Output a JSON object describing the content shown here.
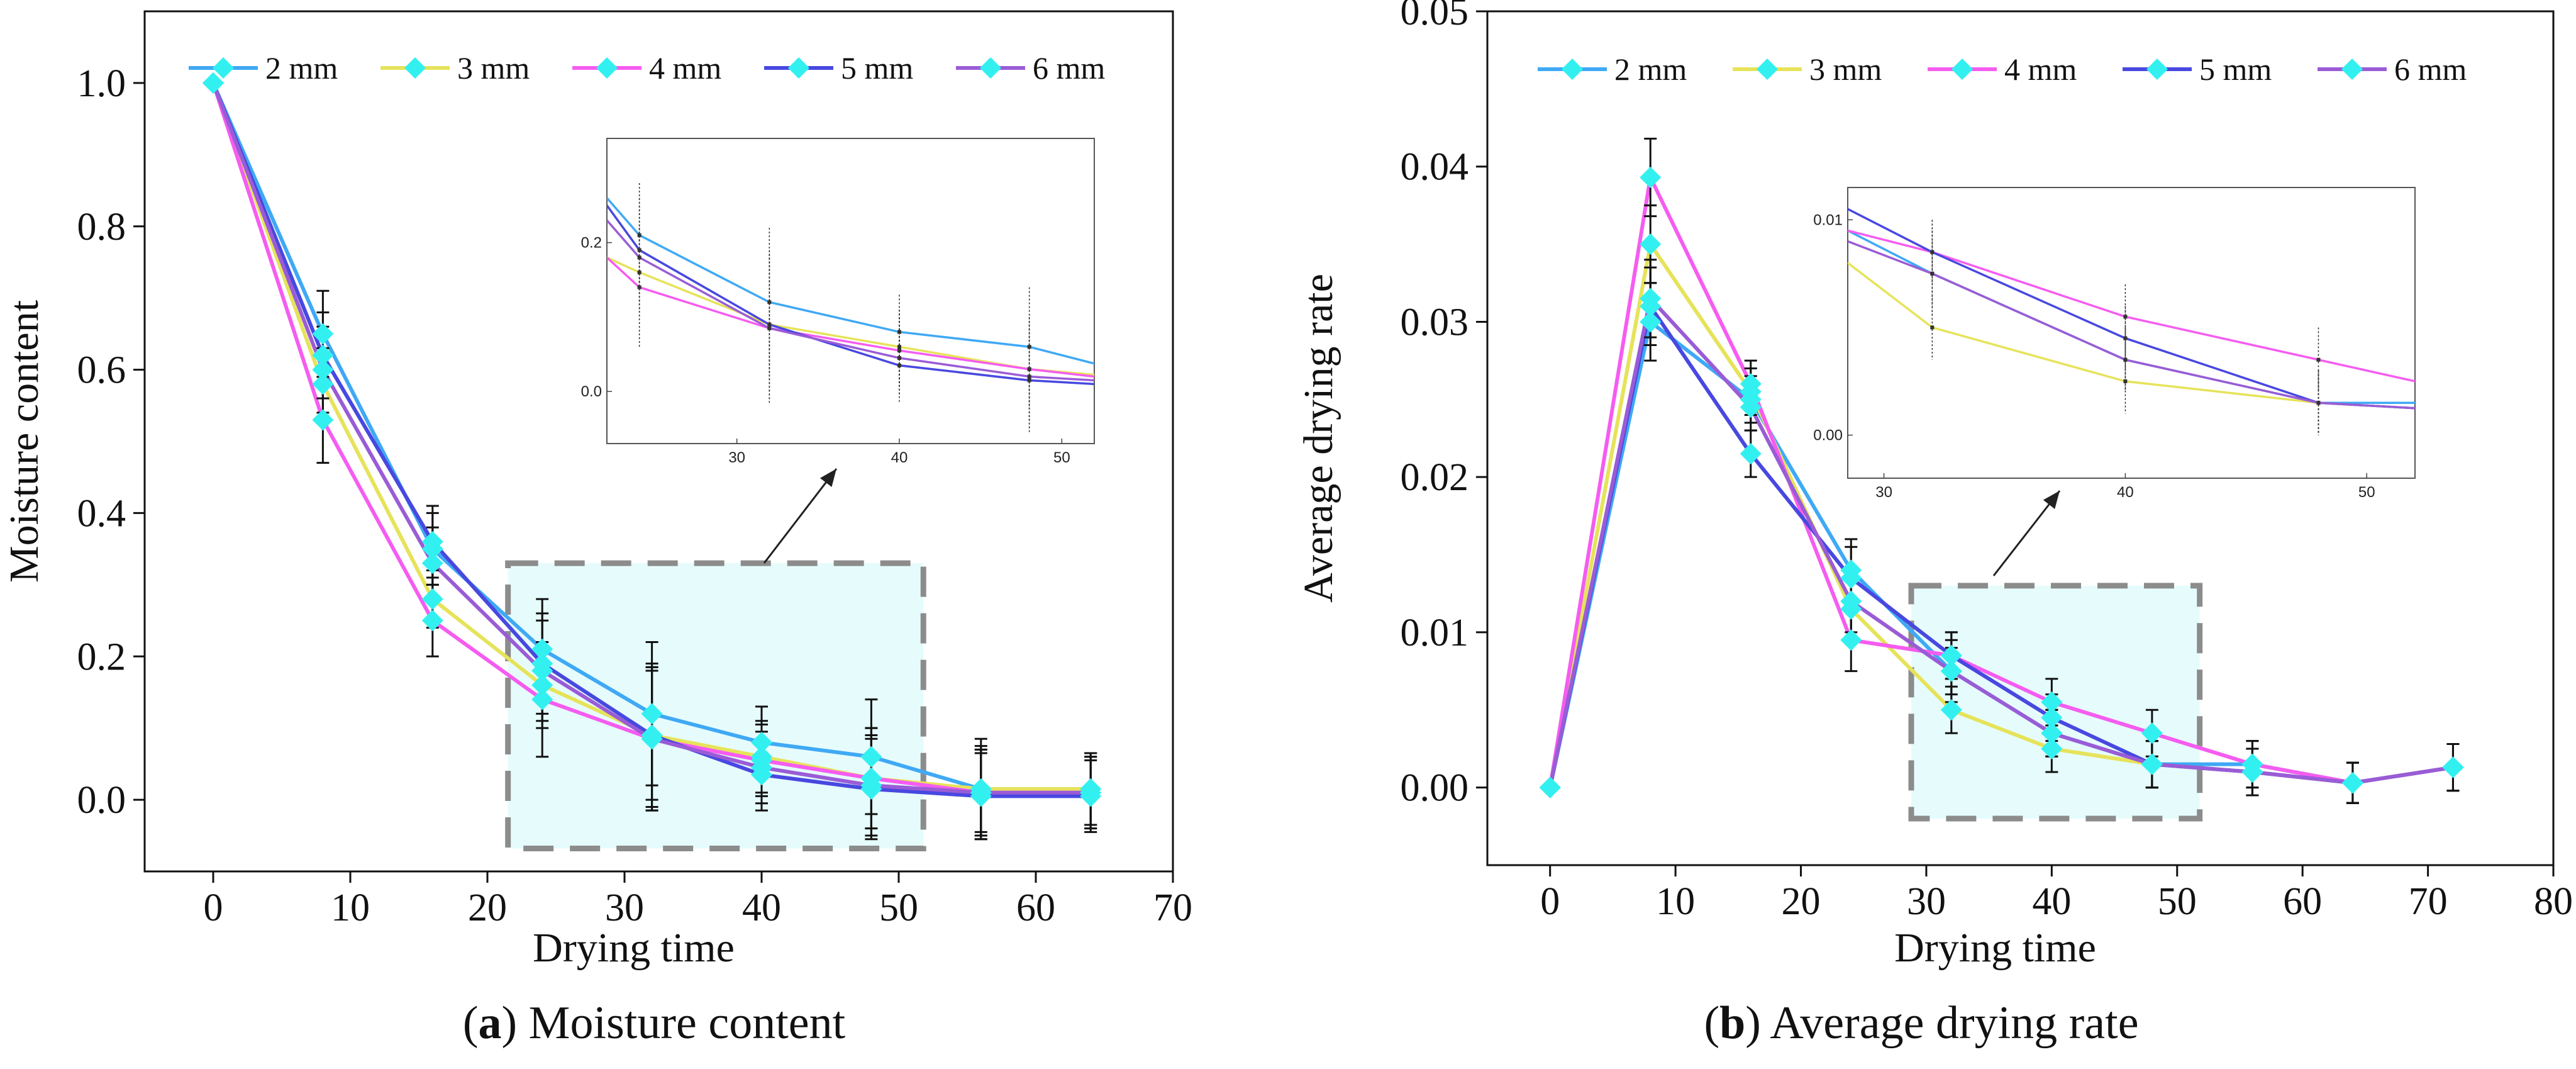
{
  "colors": {
    "2 mm": "#3fa9f5",
    "3 mm": "#e6e35a",
    "4 mm": "#f55cf0",
    "5 mm": "#4848e0",
    "6 mm": "#9a5cd6",
    "marker": "#33f0f0",
    "errorbar": "#111111",
    "highlight_fill": "#e6fcfc",
    "highlight_border": "#8c8c8c"
  },
  "captions": [
    {
      "letter": "a",
      "text": " Moisture content"
    },
    {
      "letter": "b",
      "text": " Average drying rate"
    }
  ],
  "chart_data": [
    {
      "type": "line",
      "id": "a",
      "xlabel": "Drying time",
      "ylabel": "Moisture content",
      "xlim": [
        -5,
        70
      ],
      "ylim": [
        -0.1,
        1.1
      ],
      "xticks": [
        0,
        10,
        20,
        30,
        40,
        50,
        60,
        70
      ],
      "yticks": [
        0.0,
        0.2,
        0.4,
        0.6,
        0.8,
        1.0
      ],
      "ytick_labels": [
        "0.0",
        "0.2",
        "0.4",
        "0.6",
        "0.8",
        "1.0"
      ],
      "x": [
        0,
        8,
        16,
        24,
        32,
        40,
        48,
        56,
        64
      ],
      "series": [
        {
          "name": "2 mm",
          "values": [
            1.0,
            0.65,
            0.35,
            0.21,
            0.12,
            0.08,
            0.06,
            0.015,
            0.015
          ],
          "err": [
            0,
            0.06,
            0.05,
            0.07,
            0.1,
            0.05,
            0.08,
            0.07,
            0.05
          ]
        },
        {
          "name": "3 mm",
          "values": [
            1.0,
            0.58,
            0.28,
            0.16,
            0.09,
            0.06,
            0.03,
            0.015,
            0.015
          ],
          "err": [
            0,
            0.05,
            0.04,
            0.06,
            0.09,
            0.05,
            0.07,
            0.06,
            0.05
          ]
        },
        {
          "name": "4 mm",
          "values": [
            1.0,
            0.53,
            0.25,
            0.14,
            0.085,
            0.055,
            0.03,
            0.01,
            0.01
          ],
          "err": [
            0,
            0.06,
            0.05,
            0.08,
            0.1,
            0.05,
            0.07,
            0.06,
            0.05
          ]
        },
        {
          "name": "5 mm",
          "values": [
            1.0,
            0.62,
            0.36,
            0.19,
            0.09,
            0.035,
            0.015,
            0.005,
            0.005
          ],
          "err": [
            0,
            0.06,
            0.05,
            0.07,
            0.1,
            0.05,
            0.07,
            0.06,
            0.05
          ]
        },
        {
          "name": "6 mm",
          "values": [
            1.0,
            0.6,
            0.33,
            0.18,
            0.085,
            0.045,
            0.02,
            0.01,
            0.01
          ],
          "err": [
            0,
            0.06,
            0.05,
            0.07,
            0.1,
            0.05,
            0.07,
            0.06,
            0.05
          ]
        }
      ],
      "highlight_box": {
        "x": [
          21.5,
          51.8
        ],
        "y": [
          -0.068,
          0.33
        ]
      },
      "inset": {
        "xlim": [
          22,
          52
        ],
        "ylim": [
          -0.07,
          0.34
        ],
        "xticks": [
          30,
          40,
          50
        ],
        "yticks": [
          0.0,
          0.2
        ],
        "ytick_labels": [
          "0.0",
          "0.2"
        ],
        "x_start": [
          22,
          24
        ],
        "start_values": [
          0.26,
          0.18,
          0.18,
          0.25,
          0.23
        ]
      }
    },
    {
      "type": "line",
      "id": "b",
      "xlabel": "Drying time",
      "ylabel": "Average drying rate",
      "xlim": [
        -5,
        80
      ],
      "ylim": [
        -0.005,
        0.05
      ],
      "xticks": [
        0,
        10,
        20,
        30,
        40,
        50,
        60,
        70,
        80
      ],
      "yticks": [
        0.0,
        0.01,
        0.02,
        0.03,
        0.04,
        0.05
      ],
      "ytick_labels": [
        "0.00",
        "0.01",
        "0.02",
        "0.03",
        "0.04",
        "0.05"
      ],
      "x": [
        0,
        8,
        16,
        24,
        32,
        40,
        48,
        56,
        64,
        72
      ],
      "series": [
        {
          "name": "2 mm",
          "values": [
            0,
            0.03,
            0.025,
            0.014,
            0.0075,
            0.0035,
            0.0015,
            0.0015,
            0.0003,
            0.0013
          ],
          "err": [
            0,
            0.0025,
            0.0015,
            0.002,
            0.002,
            0.0015,
            0.0015,
            0.0015,
            0.0013,
            0.0015
          ]
        },
        {
          "name": "3 mm",
          "values": [
            0,
            0.035,
            0.0255,
            0.0115,
            0.005,
            0.0025,
            0.0015,
            0.001,
            0.0003,
            0.0013
          ],
          "err": [
            0,
            0.0025,
            0.0015,
            0.002,
            0.0015,
            0.0015,
            0.0015,
            0.0015,
            0.0013,
            0.0015
          ]
        },
        {
          "name": "4 mm",
          "values": [
            0,
            0.0393,
            0.026,
            0.0095,
            0.0085,
            0.0055,
            0.0035,
            0.0015,
            0.0003,
            0.0013
          ],
          "err": [
            0,
            0.0025,
            0.0015,
            0.002,
            0.0015,
            0.0015,
            0.0015,
            0.0015,
            0.0013,
            0.0015
          ]
        },
        {
          "name": "5 mm",
          "values": [
            0,
            0.031,
            0.0215,
            0.0135,
            0.0085,
            0.0045,
            0.0015,
            0.001,
            0.0003,
            0.0013
          ],
          "err": [
            0,
            0.0025,
            0.0015,
            0.002,
            0.0015,
            0.0015,
            0.0015,
            0.0015,
            0.0013,
            0.0015
          ]
        },
        {
          "name": "6 mm",
          "values": [
            0,
            0.0315,
            0.0245,
            0.012,
            0.0075,
            0.0035,
            0.0015,
            0.001,
            0.0003,
            0.0013
          ],
          "err": [
            0,
            0.0025,
            0.0015,
            0.002,
            0.0015,
            0.0015,
            0.0015,
            0.0015,
            0.0013,
            0.0015
          ]
        }
      ],
      "highlight_box": {
        "x": [
          28.8,
          51.8
        ],
        "y": [
          -0.002,
          0.013
        ]
      },
      "inset": {
        "xlim": [
          28.5,
          52
        ],
        "ylim": [
          -0.002,
          0.0115
        ],
        "xticks": [
          30,
          40,
          50
        ],
        "yticks": [
          0.0,
          0.01
        ],
        "ytick_labels": [
          "0.00",
          "0.01"
        ],
        "x_start": [
          28.5,
          28.5
        ],
        "start_values": [
          0.0095,
          0.008,
          0.0095,
          0.0105,
          0.009
        ]
      }
    }
  ]
}
